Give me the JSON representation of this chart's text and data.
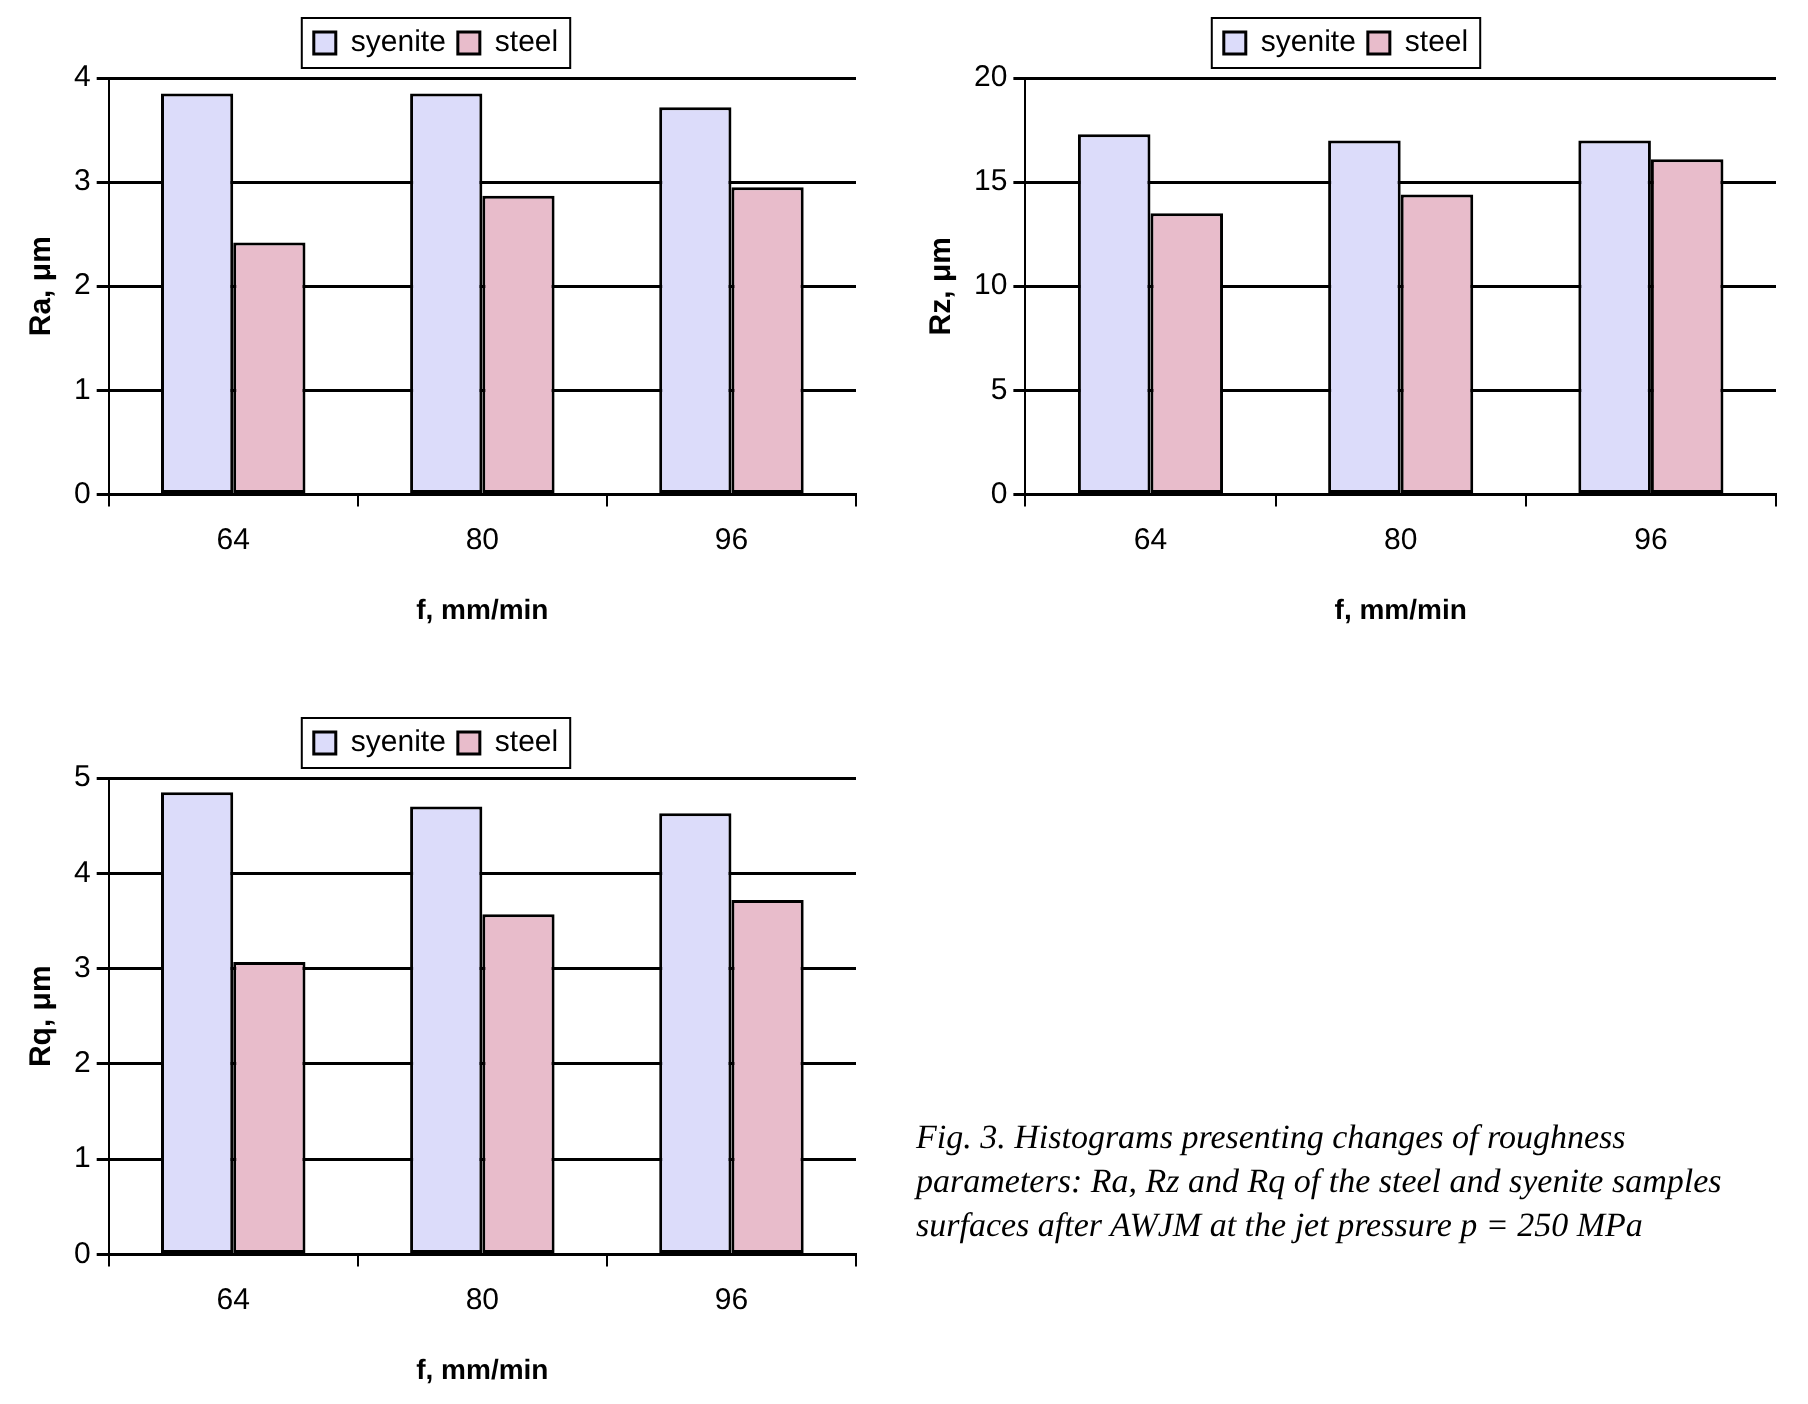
{
  "chart_data": [
    {
      "type": "bar",
      "xlabel": "f, mm/min",
      "ylabel": "Ra, μm",
      "categories": [
        "64",
        "80",
        "96"
      ],
      "series": [
        {
          "name": "syenite",
          "color": "#dcdcfa",
          "values": [
            3.85,
            3.85,
            3.72
          ]
        },
        {
          "name": "steel",
          "color": "#e8bccb",
          "values": [
            2.42,
            2.87,
            2.95
          ]
        }
      ],
      "ylim": [
        0,
        4
      ],
      "yticks": [
        0,
        1,
        2,
        3,
        4
      ],
      "grid": "y",
      "legend": "top"
    },
    {
      "type": "bar",
      "xlabel": "f, mm/min",
      "ylabel": "Rz, μm",
      "categories": [
        "64",
        "80",
        "96"
      ],
      "series": [
        {
          "name": "syenite",
          "color": "#dcdcfa",
          "values": [
            17.3,
            17.0,
            17.0
          ]
        },
        {
          "name": "steel",
          "color": "#e8bccb",
          "values": [
            13.5,
            14.4,
            16.1
          ]
        }
      ],
      "ylim": [
        0,
        20
      ],
      "yticks": [
        0,
        5,
        10,
        15,
        20
      ],
      "grid": "y",
      "legend": "top"
    },
    {
      "type": "bar",
      "xlabel": "f, mm/min",
      "ylabel": "Rq, μm",
      "categories": [
        "64",
        "80",
        "96"
      ],
      "series": [
        {
          "name": "syenite",
          "color": "#dcdcfa",
          "values": [
            4.85,
            4.7,
            4.63
          ]
        },
        {
          "name": "steel",
          "color": "#e8bccb",
          "values": [
            3.07,
            3.57,
            3.72
          ]
        }
      ],
      "ylim": [
        0,
        5
      ],
      "yticks": [
        0,
        1,
        2,
        3,
        4,
        5
      ],
      "grid": "y",
      "legend": "top",
      "annotations": [
        "Fig. 3. Histograms presenting changes of roughness parameters: Ra, Rz and Rq of the steel and syenite samples surfaces after AWJM at the jet pressure p = 250 MPa"
      ]
    }
  ]
}
